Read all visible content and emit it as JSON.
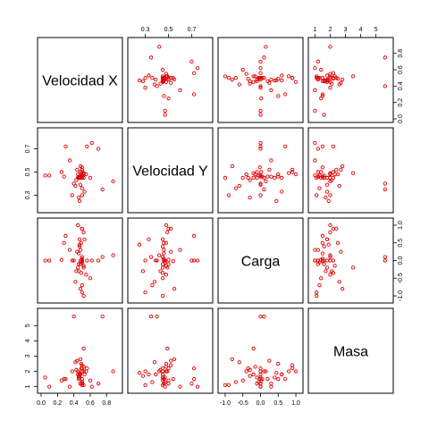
{
  "chart_data": {
    "type": "scatter",
    "matrix": true,
    "point_color": "#e00000",
    "variables": [
      {
        "name": "Velocidad X",
        "range": [
          0,
          0.95
        ],
        "ticks": [
          0.0,
          0.2,
          0.4,
          0.6,
          0.8
        ],
        "tick_labels": [
          "0.0",
          "0.2",
          "0.4",
          "0.6",
          "0.8"
        ],
        "values": [
          0.05,
          0.45,
          0.3,
          0.5,
          0.52,
          0.47,
          0.49,
          0.47,
          0.48,
          0.46,
          0.5,
          0.5,
          0.46,
          0.45,
          0.43,
          0.55,
          0.6,
          0.42,
          0.48,
          0.52,
          0.75,
          0.88,
          0.5,
          0.5,
          0.48,
          0.52,
          0.35,
          0.28,
          0.4,
          0.46,
          0.5,
          0.53,
          0.5,
          0.5,
          0.47,
          0.44,
          0.52,
          0.49,
          0.1,
          0.38,
          0.25,
          0.5,
          0.48,
          0.62,
          0.7,
          0.56
        ]
      },
      {
        "name": "Velocidad Y",
        "range": [
          0.18,
          0.85
        ],
        "ticks": [
          0.3,
          0.5,
          0.7
        ],
        "tick_labels": [
          "0.3",
          "0.5",
          "0.7"
        ],
        "values": [
          0.47,
          0.48,
          0.72,
          0.5,
          0.49,
          0.45,
          0.48,
          0.45,
          0.46,
          0.46,
          0.45,
          0.46,
          0.45,
          0.45,
          0.43,
          0.48,
          0.45,
          0.38,
          0.55,
          0.45,
          0.35,
          0.42,
          0.46,
          0.47,
          0.5,
          0.49,
          0.6,
          0.46,
          0.4,
          0.28,
          0.36,
          0.33,
          0.52,
          0.3,
          0.25,
          0.52,
          0.48,
          0.45,
          0.47,
          0.3,
          0.5,
          0.54,
          0.39,
          0.75,
          0.7,
          0.72
        ]
      },
      {
        "name": "Carga",
        "range": [
          -1.1,
          1.1
        ],
        "ticks": [
          -1.0,
          -0.5,
          0.0,
          0.5,
          1.0
        ],
        "tick_labels": [
          "-1.0",
          "-0.5",
          "0.0",
          "0.5",
          "1.0"
        ],
        "values": [
          0.0,
          1.0,
          0.7,
          0.9,
          0.8,
          0.6,
          0.5,
          0.4,
          0.3,
          0.2,
          0.1,
          0.0,
          -0.1,
          -0.2,
          -0.3,
          -0.4,
          -0.5,
          -0.6,
          -0.8,
          -1.0,
          0.1,
          0.15,
          0.05,
          -0.05,
          -0.1,
          -0.2,
          0.3,
          0.5,
          0.0,
          -0.3,
          -0.7,
          0.6,
          0.9,
          -0.9,
          0.45,
          0.25,
          -0.15,
          -0.35,
          0.0,
          0.0,
          0.02,
          -0.02,
          0.0,
          0.0,
          0.0,
          0.0
        ]
      },
      {
        "name": "Masa",
        "range": [
          0.8,
          5.9
        ],
        "ticks": [
          1,
          2,
          3,
          4,
          5
        ],
        "tick_labels": [
          "1",
          "2",
          "3",
          "4",
          "5"
        ],
        "values": [
          1.6,
          2.0,
          1.5,
          2.2,
          2.0,
          1.8,
          2.5,
          1.6,
          1.2,
          1.5,
          2.0,
          1.2,
          1.6,
          1.8,
          2.1,
          2.0,
          1.4,
          2.6,
          2.8,
          1.1,
          5.6,
          2.0,
          1.5,
          1.3,
          1.2,
          3.5,
          1.0,
          1.5,
          5.6,
          1.7,
          1.3,
          1.8,
          2.4,
          1.1,
          1.9,
          2.7,
          2.3,
          2.2,
          1.0,
          2.0,
          1.4,
          1.5,
          1.8,
          1.0,
          1.2,
          2.2
        ]
      }
    ]
  }
}
